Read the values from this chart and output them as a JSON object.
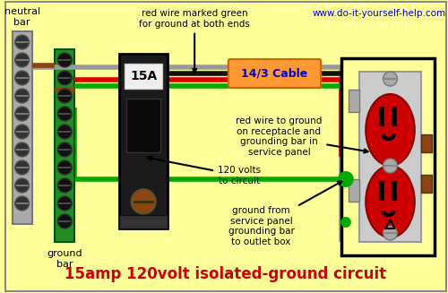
{
  "bg_color": "#FFFF99",
  "title": "15amp 120volt isolated-ground circuit",
  "title_color": "#CC0000",
  "title_fontsize": 12,
  "website": "www.do-it-yourself-help.com",
  "website_color": "#0000CC",
  "cable_label": "14/3 Cable",
  "cable_label_bg": "#FF9933",
  "cable_label_color": "#0000CC",
  "neutral_bar_label": "neutral\nbar",
  "ground_bar_label": "ground\nbar",
  "wire_gray": "#999999",
  "wire_black": "#111111",
  "wire_red": "#DD0000",
  "wire_green": "#00AA00",
  "ann1_text": "red wire marked green\nfor ground at both ends",
  "ann2_text": "red wire to ground\non receptacle and\ngrounding bar in\nservice panel",
  "ann3_text": "120 volts\nto circuit",
  "ann4_text": "ground from\nservice panel\ngrounding bar\nto outlet box"
}
